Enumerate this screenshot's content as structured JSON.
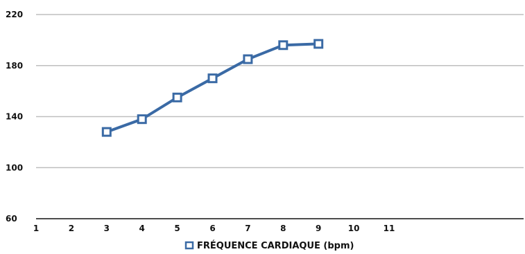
{
  "chart_data": {
    "type": "line",
    "title": "",
    "xlabel": "",
    "ylabel": "",
    "categories": [
      "1",
      "2",
      "3",
      "4",
      "5",
      "6",
      "7",
      "8",
      "9",
      "10",
      "11"
    ],
    "ylim": [
      60,
      220
    ],
    "yticks": [
      60,
      100,
      140,
      180,
      220
    ],
    "grid": true,
    "legend": "bottom",
    "series": [
      {
        "name": "FRÉQUENCE CARDIAQUE (bpm)",
        "color": "#3A6AA5",
        "marker": "square-open",
        "x": [
          "3",
          "4",
          "5",
          "6",
          "7",
          "8",
          "9"
        ],
        "values": [
          128,
          138,
          155,
          170,
          185,
          196,
          197
        ]
      }
    ]
  }
}
